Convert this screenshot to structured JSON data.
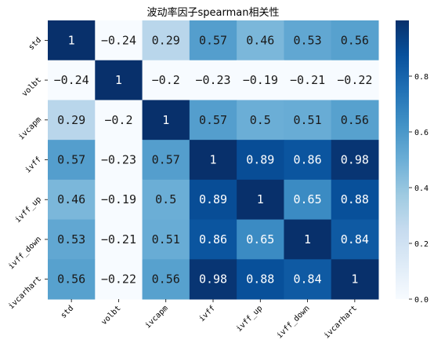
{
  "chart_data": {
    "type": "heatmap",
    "title": "波动率因子spearman相关性",
    "row_labels": [
      "std",
      "volbt",
      "ivcapm",
      "ivff",
      "ivff_up",
      "ivff_down",
      "ivcarhart"
    ],
    "col_labels": [
      "std",
      "volbt",
      "ivcapm",
      "ivff",
      "ivff_up",
      "ivff_down",
      "ivcarhart"
    ],
    "values": [
      [
        1,
        -0.24,
        0.29,
        0.57,
        0.46,
        0.53,
        0.56
      ],
      [
        -0.24,
        1,
        -0.2,
        -0.23,
        -0.19,
        -0.21,
        -0.22
      ],
      [
        0.29,
        -0.2,
        1,
        0.57,
        0.5,
        0.51,
        0.56
      ],
      [
        0.57,
        -0.23,
        0.57,
        1,
        0.89,
        0.86,
        0.98
      ],
      [
        0.46,
        -0.19,
        0.5,
        0.89,
        1,
        0.65,
        0.88
      ],
      [
        0.53,
        -0.21,
        0.51,
        0.86,
        0.65,
        1,
        0.84
      ],
      [
        0.56,
        -0.22,
        0.56,
        0.98,
        0.88,
        0.84,
        1
      ]
    ],
    "cell_labels": [
      [
        "1",
        "−0.24",
        "0.29",
        "0.57",
        "0.46",
        "0.53",
        "0.56"
      ],
      [
        "−0.24",
        "1",
        "−0.2",
        "−0.23",
        "−0.19",
        "−0.21",
        "−0.22"
      ],
      [
        "0.29",
        "−0.2",
        "1",
        "0.57",
        "0.5",
        "0.51",
        "0.56"
      ],
      [
        "0.57",
        "−0.23",
        "0.57",
        "1",
        "0.89",
        "0.86",
        "0.98"
      ],
      [
        "0.46",
        "−0.19",
        "0.5",
        "0.89",
        "1",
        "0.65",
        "0.88"
      ],
      [
        "0.53",
        "−0.21",
        "0.51",
        "0.86",
        "0.65",
        "1",
        "0.84"
      ],
      [
        "0.56",
        "−0.22",
        "0.56",
        "0.98",
        "0.88",
        "0.84",
        "1"
      ]
    ],
    "colormap": "Blues",
    "vmin": 0,
    "vmax": 1,
    "colorbar_ticks": [
      0.0,
      0.2,
      0.4,
      0.6,
      0.8
    ],
    "colorbar_tick_labels": [
      "0.0",
      "0.2",
      "0.4",
      "0.6",
      "0.8"
    ],
    "grid": false
  }
}
